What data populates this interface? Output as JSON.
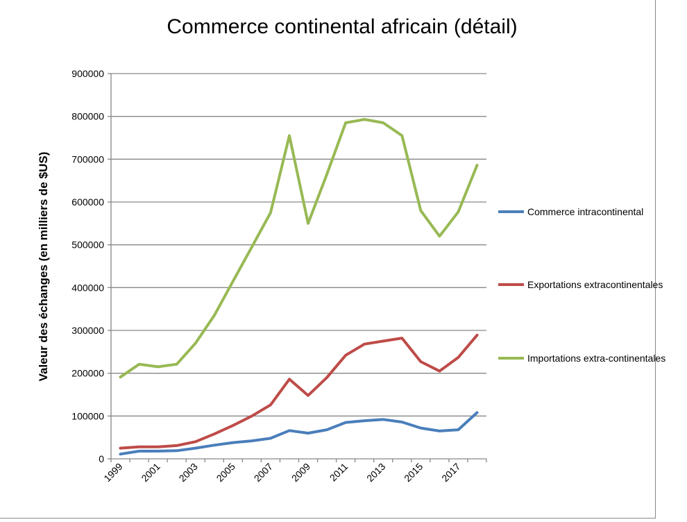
{
  "chart_data": {
    "type": "line",
    "title": "Commerce continental africain (détail)",
    "xlabel": "",
    "ylabel": "Valeur des échanges (en milliers de $US)",
    "ylim": [
      0,
      900000
    ],
    "yticks": [
      "0",
      "100000",
      "200000",
      "300000",
      "400000",
      "500000",
      "600000",
      "700000",
      "800000",
      "900000"
    ],
    "x": [
      1999,
      2000,
      2001,
      2002,
      2003,
      2004,
      2005,
      2006,
      2007,
      2008,
      2009,
      2010,
      2011,
      2012,
      2013,
      2014,
      2015,
      2016,
      2017,
      2018
    ],
    "xtick_labels": [
      "1999",
      "2001",
      "2003",
      "2005",
      "2007",
      "2009",
      "2011",
      "2013",
      "2015",
      "2017"
    ],
    "grid": true,
    "legend_placement": "right",
    "series": [
      {
        "name": "Commerce intracontinental",
        "color": "#4a7ebb",
        "values": [
          11000,
          18000,
          18000,
          19000,
          25000,
          32000,
          38000,
          42000,
          48000,
          66000,
          60000,
          68000,
          85000,
          89000,
          92000,
          86000,
          72000,
          65000,
          68000,
          108000
        ]
      },
      {
        "name": "Exportations extracontinentales",
        "color": "#be4b48",
        "values": [
          25000,
          28000,
          28000,
          31000,
          40000,
          58000,
          78000,
          100000,
          126000,
          186000,
          148000,
          190000,
          242000,
          268000,
          275000,
          282000,
          227000,
          205000,
          237000,
          289000
        ]
      },
      {
        "name": "Importations extra-continentales",
        "color": "#98b954",
        "values": [
          191000,
          221000,
          215000,
          221000,
          270000,
          335000,
          415000,
          495000,
          575000,
          755000,
          550000,
          665000,
          785000,
          793000,
          785000,
          755000,
          580000,
          520000,
          577000,
          686000
        ]
      }
    ]
  }
}
